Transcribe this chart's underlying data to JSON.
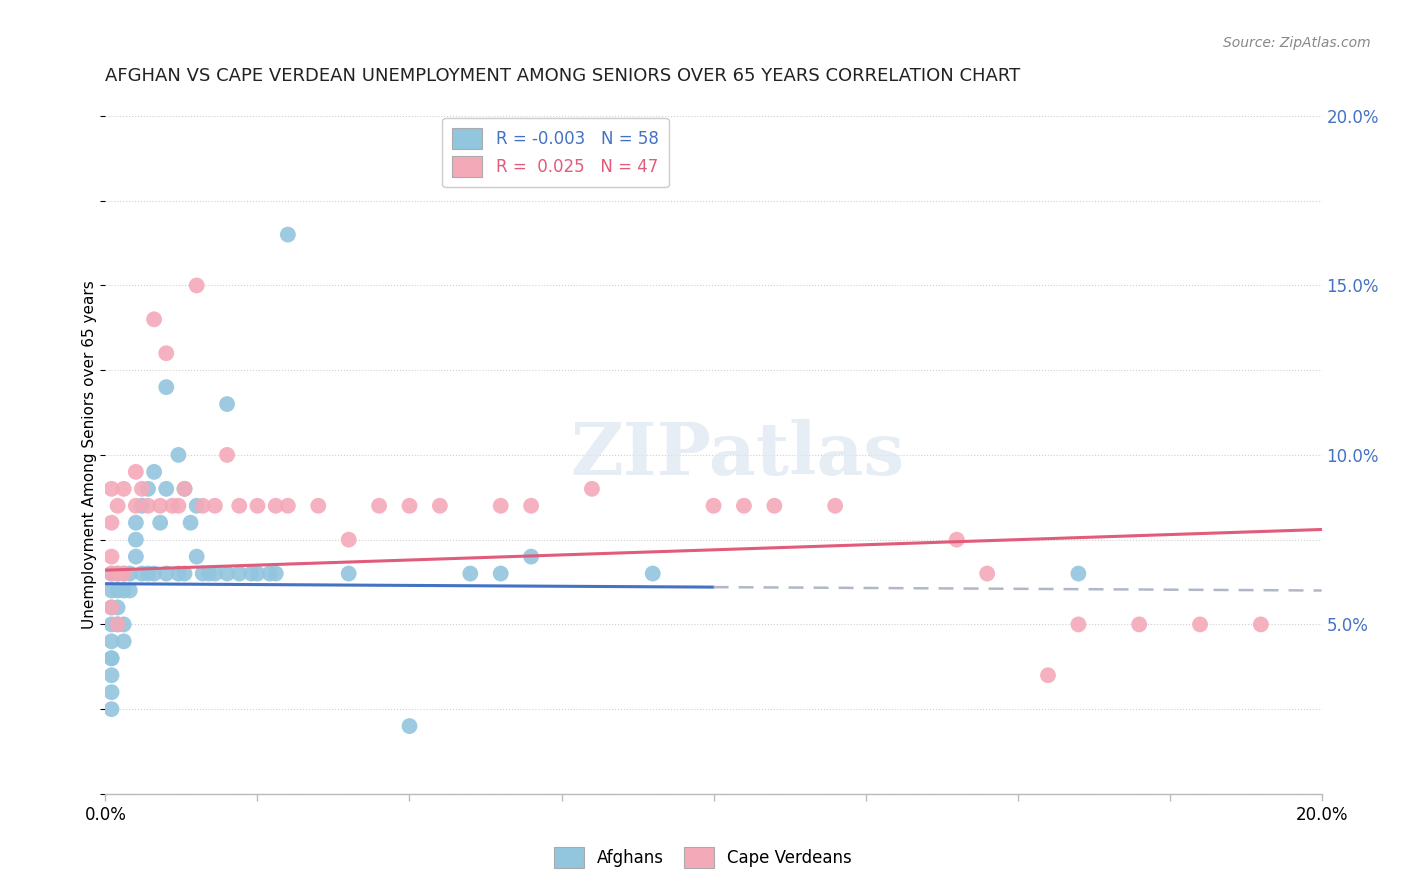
{
  "title": "AFGHAN VS CAPE VERDEAN UNEMPLOYMENT AMONG SENIORS OVER 65 YEARS CORRELATION CHART",
  "source": "Source: ZipAtlas.com",
  "ylabel": "Unemployment Among Seniors over 65 years",
  "xlim": [
    0.0,
    0.2
  ],
  "ylim": [
    0.0,
    0.2
  ],
  "x_ticks": [
    0.0,
    0.025,
    0.05,
    0.075,
    0.1,
    0.125,
    0.15,
    0.175,
    0.2
  ],
  "y_ticks": [
    0.0,
    0.025,
    0.05,
    0.075,
    0.1,
    0.125,
    0.15,
    0.175,
    0.2
  ],
  "x_tick_labels": [
    "0.0%",
    "",
    "",
    "",
    "",
    "",
    "",
    "",
    "20.0%"
  ],
  "y_tick_labels_right": [
    "",
    "",
    "5.0%",
    "",
    "10.0%",
    "",
    "15.0%",
    "",
    "20.0%"
  ],
  "legend_R_afghan": "-0.003",
  "legend_N_afghan": "58",
  "legend_R_capeverdean": "0.025",
  "legend_N_capeverdean": "47",
  "afghan_color": "#92c5de",
  "capeverdean_color": "#f4a9b8",
  "afghan_line_color": "#4472c4",
  "capeverdean_line_color": "#e05c7a",
  "dashed_line_color": "#b0b8c8",
  "watermark": "ZIPatlas",
  "afghan_line_y0": 0.062,
  "afghan_line_y1": 0.06,
  "afghan_line_solid_end": 0.1,
  "capeverdean_line_y0": 0.066,
  "capeverdean_line_y1": 0.078,
  "afghan_x": [
    0.001,
    0.001,
    0.001,
    0.001,
    0.001,
    0.001,
    0.001,
    0.001,
    0.001,
    0.001,
    0.002,
    0.002,
    0.002,
    0.002,
    0.003,
    0.003,
    0.003,
    0.003,
    0.004,
    0.004,
    0.005,
    0.005,
    0.005,
    0.006,
    0.006,
    0.007,
    0.007,
    0.008,
    0.008,
    0.009,
    0.01,
    0.01,
    0.01,
    0.012,
    0.012,
    0.013,
    0.013,
    0.014,
    0.015,
    0.015,
    0.016,
    0.017,
    0.018,
    0.02,
    0.02,
    0.022,
    0.024,
    0.025,
    0.027,
    0.028,
    0.03,
    0.04,
    0.05,
    0.06,
    0.065,
    0.07,
    0.09,
    0.16
  ],
  "afghan_y": [
    0.065,
    0.06,
    0.055,
    0.05,
    0.045,
    0.04,
    0.04,
    0.035,
    0.03,
    0.025,
    0.065,
    0.06,
    0.055,
    0.05,
    0.065,
    0.06,
    0.05,
    0.045,
    0.065,
    0.06,
    0.08,
    0.075,
    0.07,
    0.085,
    0.065,
    0.09,
    0.065,
    0.095,
    0.065,
    0.08,
    0.12,
    0.09,
    0.065,
    0.1,
    0.065,
    0.09,
    0.065,
    0.08,
    0.085,
    0.07,
    0.065,
    0.065,
    0.065,
    0.115,
    0.065,
    0.065,
    0.065,
    0.065,
    0.065,
    0.065,
    0.165,
    0.065,
    0.02,
    0.065,
    0.065,
    0.07,
    0.065,
    0.065
  ],
  "capeverdean_x": [
    0.001,
    0.001,
    0.001,
    0.001,
    0.001,
    0.002,
    0.002,
    0.002,
    0.003,
    0.003,
    0.005,
    0.005,
    0.006,
    0.007,
    0.008,
    0.009,
    0.01,
    0.011,
    0.012,
    0.013,
    0.015,
    0.016,
    0.018,
    0.02,
    0.022,
    0.025,
    0.028,
    0.03,
    0.035,
    0.04,
    0.045,
    0.05,
    0.055,
    0.065,
    0.07,
    0.08,
    0.1,
    0.105,
    0.11,
    0.12,
    0.14,
    0.145,
    0.155,
    0.16,
    0.17,
    0.18,
    0.19
  ],
  "capeverdean_y": [
    0.09,
    0.08,
    0.07,
    0.065,
    0.055,
    0.085,
    0.065,
    0.05,
    0.09,
    0.065,
    0.095,
    0.085,
    0.09,
    0.085,
    0.14,
    0.085,
    0.13,
    0.085,
    0.085,
    0.09,
    0.15,
    0.085,
    0.085,
    0.1,
    0.085,
    0.085,
    0.085,
    0.085,
    0.085,
    0.075,
    0.085,
    0.085,
    0.085,
    0.085,
    0.085,
    0.09,
    0.085,
    0.085,
    0.085,
    0.085,
    0.075,
    0.065,
    0.035,
    0.05,
    0.05,
    0.05,
    0.05
  ]
}
